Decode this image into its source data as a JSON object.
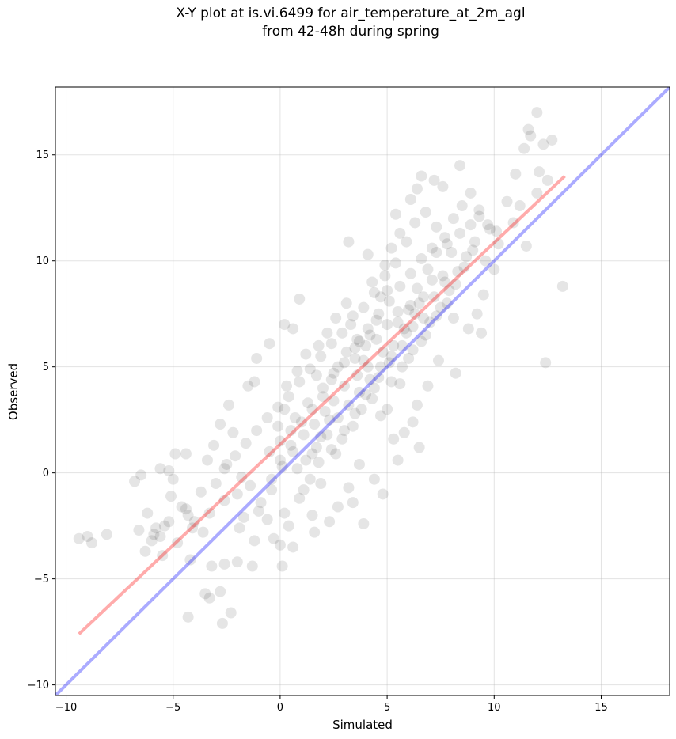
{
  "chart_data": {
    "type": "scatter",
    "title_line1": "X-Y plot at is.vi.6499 for air_temperature_at_2m_agl",
    "title_line2": "from 42-48h during spring",
    "xlabel": "Simulated",
    "ylabel": "Observed",
    "xlim": [
      -10.5,
      18.2
    ],
    "ylim": [
      -10.5,
      18.2
    ],
    "xticks": [
      -10,
      -5,
      0,
      5,
      10,
      15
    ],
    "yticks": [
      -10,
      -5,
      0,
      5,
      10,
      15
    ],
    "xtick_labels": [
      "−10",
      "−5",
      "0",
      "5",
      "10",
      "15"
    ],
    "ytick_labels": [
      "−10",
      "−5",
      "0",
      "5",
      "10",
      "15"
    ],
    "grid": true,
    "point_color": "#000000",
    "point_opacity": 0.1,
    "points": [
      [
        -9.4,
        -3.1
      ],
      [
        -9.0,
        -3.0
      ],
      [
        -8.8,
        -3.3
      ],
      [
        -8.1,
        -2.9
      ],
      [
        -6.8,
        -0.4
      ],
      [
        -6.5,
        -0.1
      ],
      [
        -6.6,
        -2.7
      ],
      [
        -6.2,
        -1.9
      ],
      [
        -6.0,
        -3.2
      ],
      [
        -5.8,
        -2.6
      ],
      [
        -5.6,
        -3.0
      ],
      [
        -5.4,
        -2.5
      ],
      [
        -5.6,
        0.2
      ],
      [
        -5.2,
        0.1
      ],
      [
        -4.9,
        0.9
      ],
      [
        -4.4,
        0.9
      ],
      [
        -5.0,
        -0.3
      ],
      [
        -5.1,
        -1.1
      ],
      [
        -4.6,
        -1.6
      ],
      [
        -4.3,
        -2.0
      ],
      [
        -4.0,
        -2.3
      ],
      [
        -4.2,
        -4.1
      ],
      [
        -3.6,
        -2.8
      ],
      [
        -4.3,
        -6.8
      ],
      [
        -3.5,
        -5.7
      ],
      [
        -3.3,
        -5.9
      ],
      [
        -2.8,
        -5.6
      ],
      [
        -2.3,
        -6.6
      ],
      [
        -2.7,
        -7.1
      ],
      [
        -3.2,
        -4.4
      ],
      [
        -2.6,
        -4.3
      ],
      [
        -2.0,
        -4.2
      ],
      [
        -1.3,
        -4.4
      ],
      [
        -3.4,
        0.6
      ],
      [
        -3.1,
        1.3
      ],
      [
        -2.8,
        2.3
      ],
      [
        -2.2,
        1.9
      ],
      [
        -2.4,
        3.2
      ],
      [
        -1.5,
        4.1
      ],
      [
        -1.2,
        4.3
      ],
      [
        -1.1,
        5.4
      ],
      [
        -0.5,
        6.1
      ],
      [
        0.2,
        7.0
      ],
      [
        0.6,
        6.8
      ],
      [
        0.9,
        8.2
      ],
      [
        -1.7,
        -2.1
      ],
      [
        -2.0,
        -1.0
      ],
      [
        -1.4,
        -0.6
      ],
      [
        -1.0,
        -1.8
      ],
      [
        -0.3,
        -3.1
      ],
      [
        0.0,
        -3.4
      ],
      [
        0.1,
        -4.4
      ],
      [
        0.6,
        -3.5
      ],
      [
        0.4,
        -2.5
      ],
      [
        1.6,
        -2.8
      ],
      [
        -0.4,
        -0.3
      ],
      [
        0.0,
        0.6
      ],
      [
        0.5,
        1.3
      ],
      [
        0.8,
        0.2
      ],
      [
        1.1,
        -0.8
      ],
      [
        1.5,
        0.9
      ],
      [
        1.9,
        1.7
      ],
      [
        2.3,
        2.5
      ],
      [
        2.0,
        3.6
      ],
      [
        2.4,
        4.4
      ],
      [
        2.7,
        5.0
      ],
      [
        1.7,
        4.6
      ],
      [
        1.3,
        3.3
      ],
      [
        0.7,
        2.6
      ],
      [
        0.2,
        3.0
      ],
      [
        -0.1,
        2.2
      ],
      [
        0.3,
        4.1
      ],
      [
        0.8,
        4.8
      ],
      [
        1.2,
        5.6
      ],
      [
        1.8,
        6.0
      ],
      [
        2.2,
        6.6
      ],
      [
        2.6,
        7.3
      ],
      [
        3.1,
        8.0
      ],
      [
        3.3,
        7.0
      ],
      [
        3.7,
        6.2
      ],
      [
        3.9,
        5.3
      ],
      [
        4.2,
        6.5
      ],
      [
        3.5,
        5.9
      ],
      [
        4.5,
        7.2
      ],
      [
        4.7,
        8.3
      ],
      [
        4.3,
        9.0
      ],
      [
        4.9,
        9.8
      ],
      [
        5.2,
        10.6
      ],
      [
        5.6,
        11.3
      ],
      [
        5.4,
        12.2
      ],
      [
        6.1,
        12.9
      ],
      [
        6.4,
        13.4
      ],
      [
        6.6,
        14.0
      ],
      [
        7.2,
        13.8
      ],
      [
        7.6,
        13.5
      ],
      [
        8.4,
        14.5
      ],
      [
        3.2,
        10.9
      ],
      [
        4.1,
        10.3
      ],
      [
        5.0,
        8.6
      ],
      [
        5.5,
        7.6
      ],
      [
        5.8,
        6.8
      ],
      [
        6.1,
        7.9
      ],
      [
        6.4,
        8.7
      ],
      [
        6.9,
        9.6
      ],
      [
        7.3,
        10.4
      ],
      [
        7.7,
        11.1
      ],
      [
        8.1,
        12.0
      ],
      [
        8.5,
        12.6
      ],
      [
        8.9,
        13.2
      ],
      [
        9.3,
        12.4
      ],
      [
        9.7,
        11.7
      ],
      [
        10.1,
        11.4
      ],
      [
        10.6,
        12.8
      ],
      [
        11.0,
        14.1
      ],
      [
        11.4,
        15.3
      ],
      [
        11.7,
        15.9
      ],
      [
        12.0,
        17.0
      ],
      [
        11.6,
        16.2
      ],
      [
        12.3,
        15.5
      ],
      [
        12.7,
        15.7
      ],
      [
        12.1,
        14.2
      ],
      [
        12.5,
        13.8
      ],
      [
        12.0,
        13.2
      ],
      [
        11.2,
        12.6
      ],
      [
        10.9,
        11.8
      ],
      [
        11.5,
        10.7
      ],
      [
        13.2,
        8.8
      ],
      [
        12.4,
        5.2
      ],
      [
        10.0,
        9.6
      ],
      [
        9.5,
        8.4
      ],
      [
        9.2,
        7.5
      ],
      [
        8.8,
        6.8
      ],
      [
        9.4,
        6.6
      ],
      [
        8.2,
        4.7
      ],
      [
        7.4,
        5.3
      ],
      [
        6.9,
        4.1
      ],
      [
        6.4,
        3.2
      ],
      [
        6.2,
        2.4
      ],
      [
        6.5,
        1.2
      ],
      [
        5.8,
        1.9
      ],
      [
        5.3,
        1.6
      ],
      [
        5.5,
        0.6
      ],
      [
        4.8,
        -1.0
      ],
      [
        4.4,
        -0.3
      ],
      [
        3.7,
        0.4
      ],
      [
        3.2,
        -0.7
      ],
      [
        2.7,
        -1.6
      ],
      [
        2.3,
        -2.3
      ],
      [
        1.9,
        -0.5
      ],
      [
        1.5,
        -2.0
      ],
      [
        3.9,
        -2.4
      ],
      [
        3.4,
        -1.4
      ],
      [
        2.6,
        0.9
      ],
      [
        3.0,
        2.0
      ],
      [
        3.5,
        2.8
      ],
      [
        4.0,
        3.7
      ],
      [
        4.6,
        4.5
      ],
      [
        5.1,
        5.2
      ],
      [
        4.4,
        4.0
      ],
      [
        5.0,
        3.0
      ],
      [
        5.6,
        4.2
      ],
      [
        6.0,
        5.4
      ],
      [
        6.6,
        6.2
      ],
      [
        7.0,
        7.1
      ],
      [
        7.5,
        7.8
      ],
      [
        7.9,
        8.6
      ],
      [
        8.3,
        9.5
      ],
      [
        8.7,
        10.2
      ],
      [
        9.1,
        10.9
      ],
      [
        8.0,
        10.4
      ],
      [
        7.1,
        9.1
      ],
      [
        6.7,
        8.3
      ],
      [
        6.3,
        7.5
      ],
      [
        5.9,
        6.6
      ],
      [
        5.3,
        6.0
      ],
      [
        4.8,
        5.7
      ],
      [
        4.1,
        5.0
      ],
      [
        3.6,
        4.6
      ],
      [
        3.0,
        4.1
      ],
      [
        2.5,
        3.4
      ],
      [
        2.1,
        2.9
      ],
      [
        1.6,
        2.3
      ],
      [
        1.1,
        1.8
      ],
      [
        0.6,
        1.0
      ],
      [
        0.1,
        0.3
      ],
      [
        -0.4,
        -0.8
      ],
      [
        -0.9,
        -1.4
      ],
      [
        -1.8,
        -0.2
      ],
      [
        -2.5,
        0.4
      ],
      [
        -3.0,
        -0.5
      ],
      [
        -3.7,
        -0.9
      ],
      [
        -4.4,
        -1.7
      ],
      [
        -5.2,
        -2.3
      ],
      [
        -5.9,
        -2.9
      ],
      [
        -6.3,
        -3.7
      ],
      [
        -5.5,
        -3.9
      ],
      [
        -4.8,
        -3.3
      ],
      [
        -4.1,
        -2.6
      ],
      [
        -3.3,
        -1.9
      ],
      [
        -2.6,
        -1.3
      ],
      [
        -1.9,
        -2.6
      ],
      [
        -1.2,
        -3.2
      ],
      [
        -0.6,
        -2.2
      ],
      [
        0.2,
        -1.9
      ],
      [
        0.9,
        -1.2
      ],
      [
        1.4,
        -0.3
      ],
      [
        1.8,
        0.5
      ],
      [
        2.4,
        1.1
      ],
      [
        2.9,
        1.6
      ],
      [
        3.4,
        2.2
      ],
      [
        3.8,
        3.0
      ],
      [
        4.3,
        3.5
      ],
      [
        4.7,
        2.7
      ],
      [
        5.2,
        4.3
      ],
      [
        5.7,
        5.0
      ],
      [
        6.2,
        5.8
      ],
      [
        6.8,
        6.5
      ],
      [
        7.3,
        7.4
      ],
      [
        7.8,
        8.0
      ],
      [
        8.2,
        8.9
      ],
      [
        8.6,
        9.7
      ],
      [
        9.0,
        10.5
      ],
      [
        9.6,
        10.0
      ],
      [
        10.2,
        10.8
      ],
      [
        9.8,
        11.5
      ],
      [
        9.3,
        12.1
      ],
      [
        8.9,
        11.7
      ],
      [
        8.4,
        11.3
      ],
      [
        7.8,
        10.8
      ],
      [
        7.3,
        11.6
      ],
      [
        6.8,
        12.3
      ],
      [
        6.3,
        11.8
      ],
      [
        5.9,
        10.9
      ],
      [
        5.4,
        9.9
      ],
      [
        4.9,
        9.3
      ],
      [
        4.4,
        8.5
      ],
      [
        3.9,
        7.8
      ],
      [
        3.4,
        7.4
      ],
      [
        2.9,
        6.6
      ],
      [
        2.4,
        6.1
      ],
      [
        1.9,
        5.5
      ],
      [
        1.4,
        4.9
      ],
      [
        0.9,
        4.3
      ],
      [
        0.4,
        3.6
      ],
      [
        -0.1,
        3.1
      ],
      [
        -0.6,
        2.6
      ],
      [
        -1.1,
        2.0
      ],
      [
        -1.6,
        1.4
      ],
      [
        -2.1,
        0.8
      ],
      [
        -2.6,
        0.2
      ],
      [
        3.1,
        5.7
      ],
      [
        3.6,
        6.3
      ],
      [
        4.1,
        6.8
      ],
      [
        4.6,
        7.5
      ],
      [
        5.1,
        8.1
      ],
      [
        5.6,
        8.8
      ],
      [
        6.1,
        9.4
      ],
      [
        6.6,
        10.1
      ],
      [
        7.1,
        10.6
      ],
      [
        7.6,
        9.3
      ],
      [
        2.0,
        4.0
      ],
      [
        2.5,
        4.7
      ],
      [
        3.0,
        5.2
      ],
      [
        3.5,
        5.4
      ],
      [
        4.0,
        6.0
      ],
      [
        4.5,
        6.3
      ],
      [
        5.0,
        7.0
      ],
      [
        5.5,
        7.1
      ],
      [
        6.0,
        7.7
      ],
      [
        6.5,
        8.0
      ],
      [
        1.0,
        2.4
      ],
      [
        1.5,
        3.0
      ],
      [
        0.5,
        2.0
      ],
      [
        0.0,
        1.5
      ],
      [
        -0.5,
        1.0
      ],
      [
        1.2,
        0.6
      ],
      [
        1.7,
        1.2
      ],
      [
        2.2,
        1.8
      ],
      [
        2.7,
        2.6
      ],
      [
        3.2,
        3.2
      ],
      [
        3.7,
        3.8
      ],
      [
        4.2,
        4.4
      ],
      [
        4.7,
        5.0
      ],
      [
        5.2,
        5.5
      ],
      [
        5.7,
        6.0
      ],
      [
        6.2,
        6.9
      ],
      [
        6.7,
        7.3
      ],
      [
        7.2,
        8.3
      ],
      [
        7.7,
        9.0
      ],
      [
        8.1,
        7.3
      ]
    ]
  },
  "colors": {
    "point": "#000000",
    "fit_line": "#ff0000",
    "identity_line": "#0000ff",
    "grid": "#b0b0b0",
    "axes": "#000000"
  },
  "lines": {
    "fit": {
      "color": "red",
      "x": [
        -9.4,
        13.3
      ],
      "y": [
        -7.6,
        14.0
      ]
    },
    "identity": {
      "color": "blue",
      "x": [
        -10.5,
        18.2
      ],
      "y": [
        -10.5,
        18.2
      ]
    }
  }
}
